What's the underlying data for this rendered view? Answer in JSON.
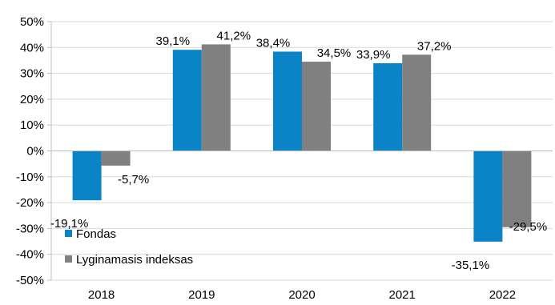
{
  "chart_data": {
    "type": "bar",
    "categories": [
      "2018",
      "2019",
      "2020",
      "2021",
      "2022"
    ],
    "series": [
      {
        "name": "Fondas",
        "color": "#0a84c6",
        "values": [
          -19.1,
          39.1,
          38.4,
          33.9,
          -35.1
        ],
        "labels": [
          "-19,1%",
          "39,1%",
          "38,4%",
          "33,9%",
          "-35,1%"
        ]
      },
      {
        "name": "Lyginamasis indeksas",
        "color": "#808080",
        "values": [
          -5.7,
          41.2,
          34.5,
          37.2,
          -29.5
        ],
        "labels": [
          "-5,7%",
          "41,2%",
          "34,5%",
          "37,2%",
          "-29,5%"
        ]
      }
    ],
    "y_ticks": [
      "50%",
      "40%",
      "30%",
      "20%",
      "10%",
      "0%",
      "-10%",
      "-20%",
      "-30%",
      "-40%",
      "-50%"
    ],
    "ylim": [
      -50,
      50
    ],
    "grid": true,
    "legend_position": "bottom-left"
  }
}
